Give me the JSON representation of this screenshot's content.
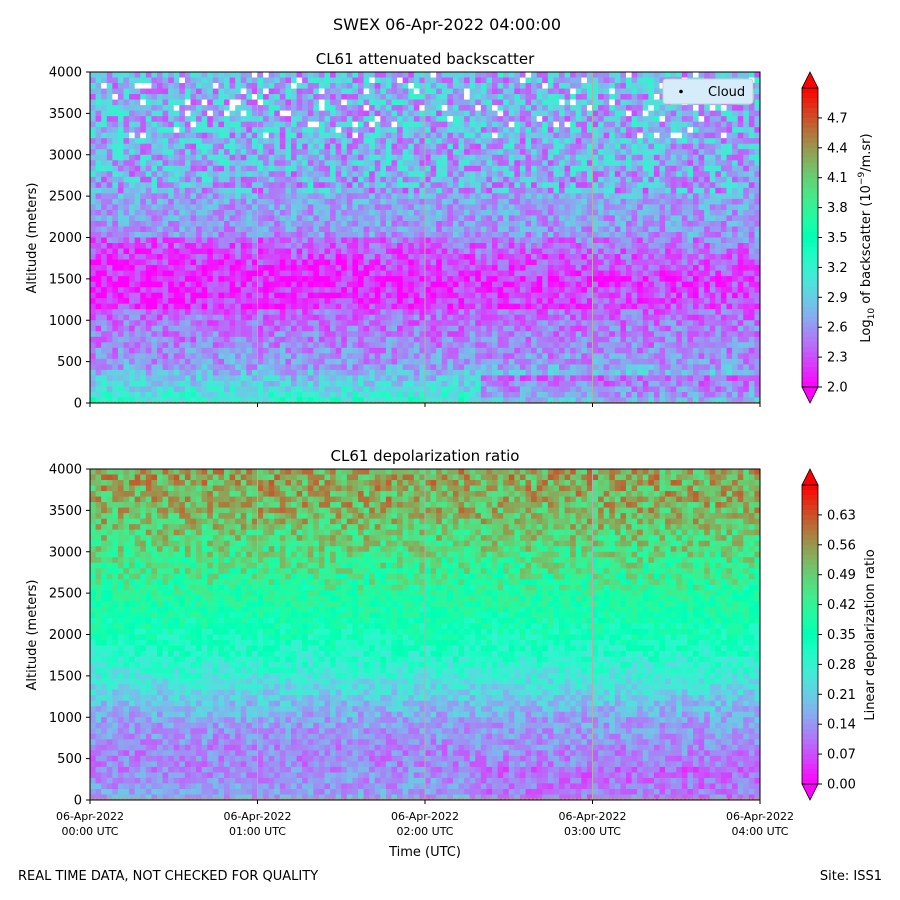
{
  "figure": {
    "suptitle": "SWEX 06-Apr-2022 04:00:00",
    "footer_left": "REAL TIME DATA, NOT CHECKED FOR QUALITY",
    "footer_right": "Site: ISS1"
  },
  "colors": {
    "colormap": "rainbow",
    "cloud_marker": "#000000",
    "legend_bg": "#d6ecfa",
    "vline": "#b0b0b0",
    "surface_line": "#d9a23a"
  },
  "chart_data": [
    {
      "type": "heatmap",
      "title": "CL61 attenuated backscatter",
      "ylabel": "Altitude (meters)",
      "xlabel": "",
      "ylim": [
        0,
        4000
      ],
      "yticks": [
        0,
        500,
        1000,
        1500,
        2000,
        2500,
        3000,
        3500,
        4000
      ],
      "xlim": [
        "2022-04-06T00:00",
        "2022-04-06T04:00"
      ],
      "xticks": [
        "2022-04-06T00:00",
        "2022-04-06T01:00",
        "2022-04-06T02:00",
        "2022-04-06T03:00",
        "2022-04-06T04:00"
      ],
      "legend": {
        "entries": [
          "Cloud"
        ],
        "placement": "top-right"
      },
      "colorbar": {
        "label_prefix": "Log",
        "label_sub": "10",
        "label_mid": " of backscatter (10",
        "label_sup": "−9",
        "label_suffix": "/m.sr)",
        "range": [
          2.0,
          5.0
        ],
        "ticks": [
          "2.0",
          "2.3",
          "2.6",
          "2.9",
          "3.2",
          "3.5",
          "3.8",
          "4.1",
          "4.4",
          "4.7"
        ],
        "extend": "both"
      },
      "profile_description": {
        "altitude_bands_m": [
          0,
          300,
          500,
          1000,
          1500,
          2000,
          2500,
          3000,
          4000
        ],
        "typical_values_near": [
          3.25,
          2.85,
          2.6,
          2.45,
          2.3,
          2.6,
          2.7,
          2.75,
          2.75
        ]
      }
    },
    {
      "type": "heatmap",
      "title": "CL61 depolarization ratio",
      "ylabel": "Altitude (meters)",
      "xlabel": "Time (UTC)",
      "ylim": [
        0,
        4000
      ],
      "yticks": [
        0,
        500,
        1000,
        1500,
        2000,
        2500,
        3000,
        3500,
        4000
      ],
      "xlim": [
        "2022-04-06T00:00",
        "2022-04-06T04:00"
      ],
      "xticks": [
        "2022-04-06T00:00",
        "2022-04-06T01:00",
        "2022-04-06T02:00",
        "2022-04-06T03:00",
        "2022-04-06T04:00"
      ],
      "xticklabels": [
        [
          "06-Apr-2022",
          "00:00 UTC"
        ],
        [
          "06-Apr-2022",
          "01:00 UTC"
        ],
        [
          "06-Apr-2022",
          "02:00 UTC"
        ],
        [
          "06-Apr-2022",
          "03:00 UTC"
        ],
        [
          "06-Apr-2022",
          "04:00 UTC"
        ]
      ],
      "colorbar": {
        "label": "Linear depolarization ratio",
        "range": [
          0.0,
          0.7
        ],
        "ticks": [
          "0.00",
          "0.07",
          "0.14",
          "0.21",
          "0.28",
          "0.35",
          "0.42",
          "0.49",
          "0.56",
          "0.63"
        ],
        "extend": "both"
      },
      "profile_description": {
        "altitude_bands_m": [
          0,
          500,
          1000,
          1500,
          2000,
          2500,
          3000,
          3500,
          4000
        ],
        "typical_values_near": [
          0.16,
          0.12,
          0.16,
          0.26,
          0.34,
          0.4,
          0.46,
          0.52,
          0.54
        ]
      }
    }
  ]
}
